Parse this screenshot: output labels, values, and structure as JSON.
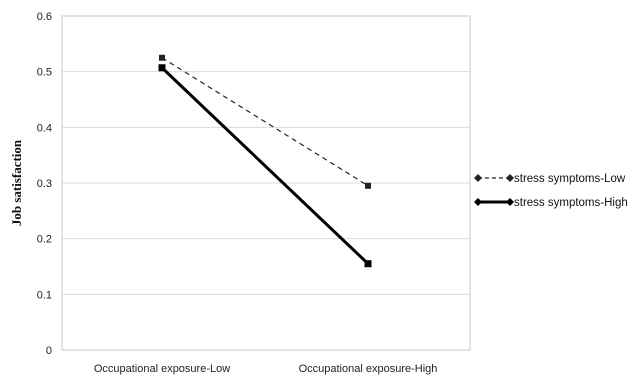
{
  "chart_data": {
    "type": "line",
    "title": "",
    "xlabel": "",
    "ylabel": "Job satisfaction",
    "categories": [
      "Occupational exposure-Low",
      "Occupational exposure-High"
    ],
    "ylim": [
      0,
      0.6
    ],
    "yticks": [
      "0",
      "0.1",
      "0.2",
      "0.3",
      "0.4",
      "0.5",
      "0.6"
    ],
    "grid": true,
    "legend_position": "right",
    "series": [
      {
        "name": "stress symptoms-Low",
        "values": [
          0.525,
          0.295
        ],
        "style": "dashed",
        "color": "#222222"
      },
      {
        "name": "stress symptoms-High",
        "values": [
          0.507,
          0.155
        ],
        "style": "solid",
        "color": "#000000"
      }
    ]
  }
}
